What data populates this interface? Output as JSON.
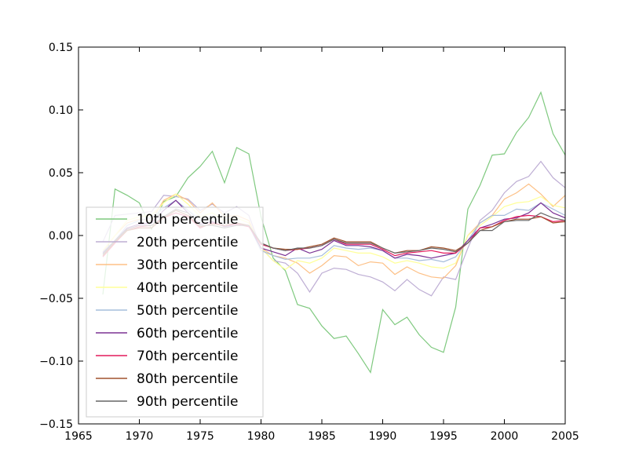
{
  "chart_data": {
    "type": "line",
    "title": "",
    "xlabel": "",
    "ylabel": "",
    "xlim": [
      1965,
      2005
    ],
    "ylim": [
      -0.15,
      0.15
    ],
    "xticks": [
      "1965",
      "1970",
      "1975",
      "1980",
      "1985",
      "1990",
      "1995",
      "2000",
      "2005"
    ],
    "yticks": [
      "0.15",
      "0.10",
      "0.05",
      "0.00",
      "−0.05",
      "−0.10",
      "−0.15"
    ],
    "grid": false,
    "legend_position": "center-left",
    "x": [
      1967,
      1968,
      1969,
      1970,
      1971,
      1972,
      1973,
      1974,
      1975,
      1976,
      1977,
      1978,
      1979,
      1980,
      1981,
      1982,
      1983,
      1984,
      1985,
      1986,
      1987,
      1988,
      1989,
      1990,
      1991,
      1992,
      1993,
      1994,
      1995,
      1996,
      1997,
      1998,
      1999,
      2000,
      2001,
      2002,
      2003,
      2004,
      2005
    ],
    "series": [
      {
        "name": "10th percentile",
        "color": "#7fc97f",
        "values": [
          -0.047,
          0.037,
          0.032,
          0.026,
          0.005,
          0.027,
          0.031,
          0.046,
          0.055,
          0.067,
          0.042,
          0.07,
          0.065,
          0.015,
          -0.018,
          -0.028,
          -0.055,
          -0.058,
          -0.072,
          -0.082,
          -0.08,
          -0.094,
          -0.109,
          -0.059,
          -0.071,
          -0.065,
          -0.079,
          -0.089,
          -0.093,
          -0.057,
          0.021,
          0.04,
          0.064,
          0.065,
          0.082,
          0.094,
          0.114,
          0.081,
          0.064
        ]
      },
      {
        "name": "20th percentile",
        "color": "#beaed4",
        "values": [
          -0.005,
          0.016,
          0.017,
          0.018,
          0.019,
          0.032,
          0.031,
          0.029,
          0.02,
          0.025,
          0.018,
          0.023,
          0.016,
          -0.01,
          -0.02,
          -0.022,
          -0.03,
          -0.045,
          -0.03,
          -0.026,
          -0.027,
          -0.031,
          -0.033,
          -0.037,
          -0.044,
          -0.035,
          -0.043,
          -0.048,
          -0.033,
          -0.035,
          -0.01,
          0.012,
          0.02,
          0.034,
          0.043,
          0.047,
          0.059,
          0.046,
          0.038
        ]
      },
      {
        "name": "30th percentile",
        "color": "#fdc086",
        "values": [
          -0.013,
          0.0,
          0.01,
          0.013,
          0.012,
          0.028,
          0.033,
          0.028,
          0.018,
          0.026,
          0.015,
          0.016,
          0.012,
          -0.01,
          -0.016,
          -0.018,
          -0.022,
          -0.03,
          -0.024,
          -0.016,
          -0.017,
          -0.024,
          -0.021,
          -0.022,
          -0.031,
          -0.025,
          -0.03,
          -0.033,
          -0.034,
          -0.024,
          0.0,
          0.01,
          0.016,
          0.029,
          0.034,
          0.041,
          0.033,
          0.023,
          0.032
        ]
      },
      {
        "name": "40th percentile",
        "color": "#ffff99",
        "values": [
          -0.012,
          0.0,
          0.012,
          0.015,
          0.016,
          0.026,
          0.033,
          0.025,
          0.015,
          0.018,
          0.012,
          0.014,
          0.01,
          -0.01,
          -0.02,
          -0.027,
          -0.02,
          -0.022,
          -0.018,
          -0.01,
          -0.012,
          -0.014,
          -0.014,
          -0.017,
          -0.022,
          -0.02,
          -0.022,
          -0.025,
          -0.026,
          -0.022,
          0.0,
          0.008,
          0.015,
          0.023,
          0.026,
          0.027,
          0.031,
          0.024,
          0.022
        ]
      },
      {
        "name": "50th percentile",
        "color": "#a6bddb",
        "values": [
          -0.013,
          -0.004,
          0.008,
          0.012,
          0.014,
          0.022,
          0.028,
          0.02,
          0.012,
          0.014,
          0.008,
          0.01,
          0.008,
          -0.012,
          -0.016,
          -0.019,
          -0.018,
          -0.018,
          -0.016,
          -0.008,
          -0.01,
          -0.011,
          -0.01,
          -0.012,
          -0.018,
          -0.018,
          -0.02,
          -0.019,
          -0.021,
          -0.017,
          -0.004,
          0.01,
          0.016,
          0.016,
          0.021,
          0.02,
          0.026,
          0.021,
          0.016
        ]
      },
      {
        "name": "60th percentile",
        "color": "#7b3294",
        "values": [
          -0.014,
          -0.004,
          0.006,
          0.009,
          0.01,
          0.02,
          0.028,
          0.018,
          0.009,
          0.011,
          0.007,
          0.009,
          0.008,
          -0.01,
          -0.013,
          -0.016,
          -0.01,
          -0.014,
          -0.011,
          -0.004,
          -0.008,
          -0.008,
          -0.009,
          -0.012,
          -0.018,
          -0.015,
          -0.016,
          -0.018,
          -0.016,
          -0.014,
          -0.004,
          0.006,
          0.009,
          0.013,
          0.014,
          0.018,
          0.026,
          0.018,
          0.014
        ]
      },
      {
        "name": "70th percentile",
        "color": "#e41a5b",
        "values": [
          -0.017,
          -0.006,
          0.004,
          0.007,
          0.008,
          0.014,
          0.018,
          0.015,
          0.006,
          0.01,
          0.008,
          0.009,
          0.007,
          -0.007,
          -0.01,
          -0.012,
          -0.011,
          -0.01,
          -0.008,
          -0.003,
          -0.007,
          -0.007,
          -0.007,
          -0.011,
          -0.016,
          -0.014,
          -0.013,
          -0.012,
          -0.014,
          -0.014,
          -0.006,
          0.006,
          0.007,
          0.012,
          0.015,
          0.016,
          0.015,
          0.011,
          0.012
        ]
      },
      {
        "name": "80th percentile",
        "color": "#a0522d",
        "values": [
          -0.016,
          -0.005,
          0.004,
          0.006,
          0.006,
          0.014,
          0.02,
          0.016,
          0.007,
          0.009,
          0.008,
          0.01,
          0.008,
          -0.006,
          -0.01,
          -0.011,
          -0.011,
          -0.009,
          -0.007,
          -0.002,
          -0.005,
          -0.005,
          -0.005,
          -0.01,
          -0.014,
          -0.012,
          -0.012,
          -0.009,
          -0.01,
          -0.012,
          -0.006,
          0.004,
          0.007,
          0.011,
          0.013,
          0.013,
          0.015,
          0.01,
          0.011
        ]
      },
      {
        "name": "90th percentile",
        "color": "#666666",
        "values": [
          -0.015,
          -0.004,
          0.005,
          0.008,
          0.008,
          0.015,
          0.021,
          0.018,
          0.008,
          0.008,
          0.006,
          0.008,
          0.008,
          -0.006,
          -0.01,
          -0.012,
          -0.01,
          -0.01,
          -0.008,
          -0.003,
          -0.006,
          -0.006,
          -0.006,
          -0.01,
          -0.014,
          -0.013,
          -0.012,
          -0.01,
          -0.011,
          -0.013,
          -0.006,
          0.004,
          0.004,
          0.011,
          0.012,
          0.012,
          0.018,
          0.014,
          0.012
        ]
      }
    ]
  }
}
